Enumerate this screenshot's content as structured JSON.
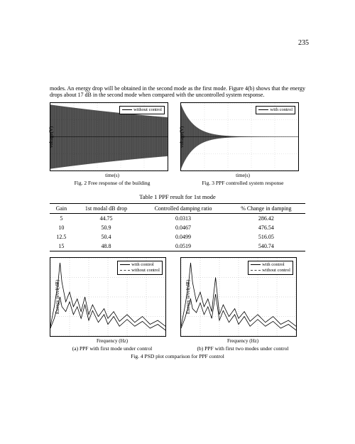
{
  "page_number": "235",
  "paragraph": "modes. An energy drop will be obtained in the second mode as the first mode. Figure 4(b) shows that the energy drops about 17 dB in the second mode when compared with the uncontrolled system response.",
  "fig2": {
    "type": "line",
    "xlabel": "time(s)",
    "ylabel": "voltage(V)",
    "caption": "Fig. 2  Free response of the building",
    "legend": [
      "without control"
    ],
    "xlim": [
      0,
      10
    ],
    "ylim": [
      -1,
      1
    ],
    "decay_constant": 0.05,
    "frequency": 25,
    "grid_color": "#aaaaaa",
    "line_color": "#000000",
    "background_color": "#ffffff",
    "border_color": "#000000",
    "label_fontsize": 7
  },
  "fig3": {
    "type": "line",
    "xlabel": "time(s)",
    "ylabel": "voltage(V)",
    "caption": "Fig. 3  PPF controlled system response",
    "legend": [
      "with control"
    ],
    "xlim": [
      0,
      10
    ],
    "ylim": [
      -1,
      1
    ],
    "decay_constant": 0.9,
    "frequency": 25,
    "grid_color": "#aaaaaa",
    "line_color": "#000000",
    "background_color": "#ffffff",
    "border_color": "#000000",
    "label_fontsize": 7
  },
  "table1": {
    "title": "Table 1 PPF result for 1st mode",
    "columns": [
      "Gain",
      "1st modal dB drop",
      "Controlled damping ratio",
      "% Change in damping"
    ],
    "rows": [
      [
        "5",
        "44.75",
        "0.0313",
        "286.42"
      ],
      [
        "10",
        "50.9",
        "0.0467",
        "476.54"
      ],
      [
        "12.5",
        "50.4",
        "0.0499",
        "516.05"
      ],
      [
        "15",
        "48.8",
        "0.0519",
        "540.74"
      ]
    ],
    "fontsize": 8,
    "border_color": "#000000"
  },
  "fig4a": {
    "type": "line",
    "xlabel": "Frequency (Hz)",
    "ylabel": "Energy level(dB)",
    "caption": "(a) PPF with first mode under control",
    "legend": [
      "with control",
      "without control"
    ],
    "xlim": [
      0,
      60
    ],
    "ylim": [
      -60,
      20
    ],
    "xtick_step": 10,
    "ytick_step": 20,
    "grid_color": "#888888",
    "grid_style": "dotted",
    "background_color": "#ffffff",
    "series": [
      {
        "name": "without control",
        "color": "#000000",
        "dash": "3,0",
        "points": [
          [
            0,
            -50
          ],
          [
            2,
            -30
          ],
          [
            4,
            -5
          ],
          [
            5,
            15
          ],
          [
            6,
            -5
          ],
          [
            8,
            -25
          ],
          [
            10,
            -15
          ],
          [
            12,
            -30
          ],
          [
            14,
            -22
          ],
          [
            16,
            -35
          ],
          [
            18,
            -20
          ],
          [
            20,
            -38
          ],
          [
            22,
            -28
          ],
          [
            25,
            -40
          ],
          [
            28,
            -32
          ],
          [
            30,
            -42
          ],
          [
            33,
            -35
          ],
          [
            36,
            -45
          ],
          [
            40,
            -38
          ],
          [
            44,
            -46
          ],
          [
            48,
            -40
          ],
          [
            52,
            -48
          ],
          [
            56,
            -44
          ],
          [
            60,
            -50
          ]
        ]
      },
      {
        "name": "with control",
        "color": "#000000",
        "dash": "0",
        "points": [
          [
            0,
            -52
          ],
          [
            2,
            -42
          ],
          [
            4,
            -28
          ],
          [
            5,
            -20
          ],
          [
            6,
            -30
          ],
          [
            8,
            -35
          ],
          [
            10,
            -25
          ],
          [
            12,
            -38
          ],
          [
            14,
            -30
          ],
          [
            16,
            -42
          ],
          [
            18,
            -28
          ],
          [
            20,
            -44
          ],
          [
            22,
            -34
          ],
          [
            25,
            -46
          ],
          [
            28,
            -38
          ],
          [
            30,
            -48
          ],
          [
            33,
            -40
          ],
          [
            36,
            -50
          ],
          [
            40,
            -43
          ],
          [
            44,
            -50
          ],
          [
            48,
            -45
          ],
          [
            52,
            -52
          ],
          [
            56,
            -48
          ],
          [
            60,
            -54
          ]
        ]
      }
    ],
    "label_fontsize": 7
  },
  "fig4b": {
    "type": "line",
    "xlabel": "Frequency (Hz)",
    "ylabel": "Energy level(dB)",
    "caption": "(b) PPF with first two modes under control",
    "legend": [
      "with control",
      "without control"
    ],
    "xlim": [
      0,
      60
    ],
    "ylim": [
      -60,
      20
    ],
    "xtick_step": 10,
    "ytick_step": 20,
    "grid_color": "#888888",
    "grid_style": "dotted",
    "background_color": "#ffffff",
    "series": [
      {
        "name": "without control",
        "color": "#000000",
        "dash": "3,0",
        "points": [
          [
            0,
            -50
          ],
          [
            2,
            -30
          ],
          [
            4,
            -5
          ],
          [
            5,
            15
          ],
          [
            6,
            -5
          ],
          [
            8,
            -25
          ],
          [
            10,
            -15
          ],
          [
            12,
            -30
          ],
          [
            14,
            -22
          ],
          [
            16,
            -35
          ],
          [
            18,
            0
          ],
          [
            20,
            -38
          ],
          [
            22,
            -28
          ],
          [
            25,
            -40
          ],
          [
            28,
            -32
          ],
          [
            30,
            -42
          ],
          [
            33,
            -35
          ],
          [
            36,
            -45
          ],
          [
            40,
            -38
          ],
          [
            44,
            -46
          ],
          [
            48,
            -40
          ],
          [
            52,
            -48
          ],
          [
            56,
            -44
          ],
          [
            60,
            -50
          ]
        ]
      },
      {
        "name": "with control",
        "color": "#000000",
        "dash": "0",
        "points": [
          [
            0,
            -52
          ],
          [
            2,
            -42
          ],
          [
            4,
            -28
          ],
          [
            5,
            -22
          ],
          [
            6,
            -32
          ],
          [
            8,
            -36
          ],
          [
            10,
            -26
          ],
          [
            12,
            -38
          ],
          [
            14,
            -30
          ],
          [
            16,
            -42
          ],
          [
            18,
            -17
          ],
          [
            20,
            -44
          ],
          [
            22,
            -34
          ],
          [
            25,
            -46
          ],
          [
            28,
            -38
          ],
          [
            30,
            -48
          ],
          [
            33,
            -40
          ],
          [
            36,
            -50
          ],
          [
            40,
            -43
          ],
          [
            44,
            -50
          ],
          [
            48,
            -45
          ],
          [
            52,
            -52
          ],
          [
            56,
            -48
          ],
          [
            60,
            -54
          ]
        ]
      }
    ],
    "label_fontsize": 7
  },
  "fig4_caption": "Fig. 4  PSD plot comparison for PPF control"
}
